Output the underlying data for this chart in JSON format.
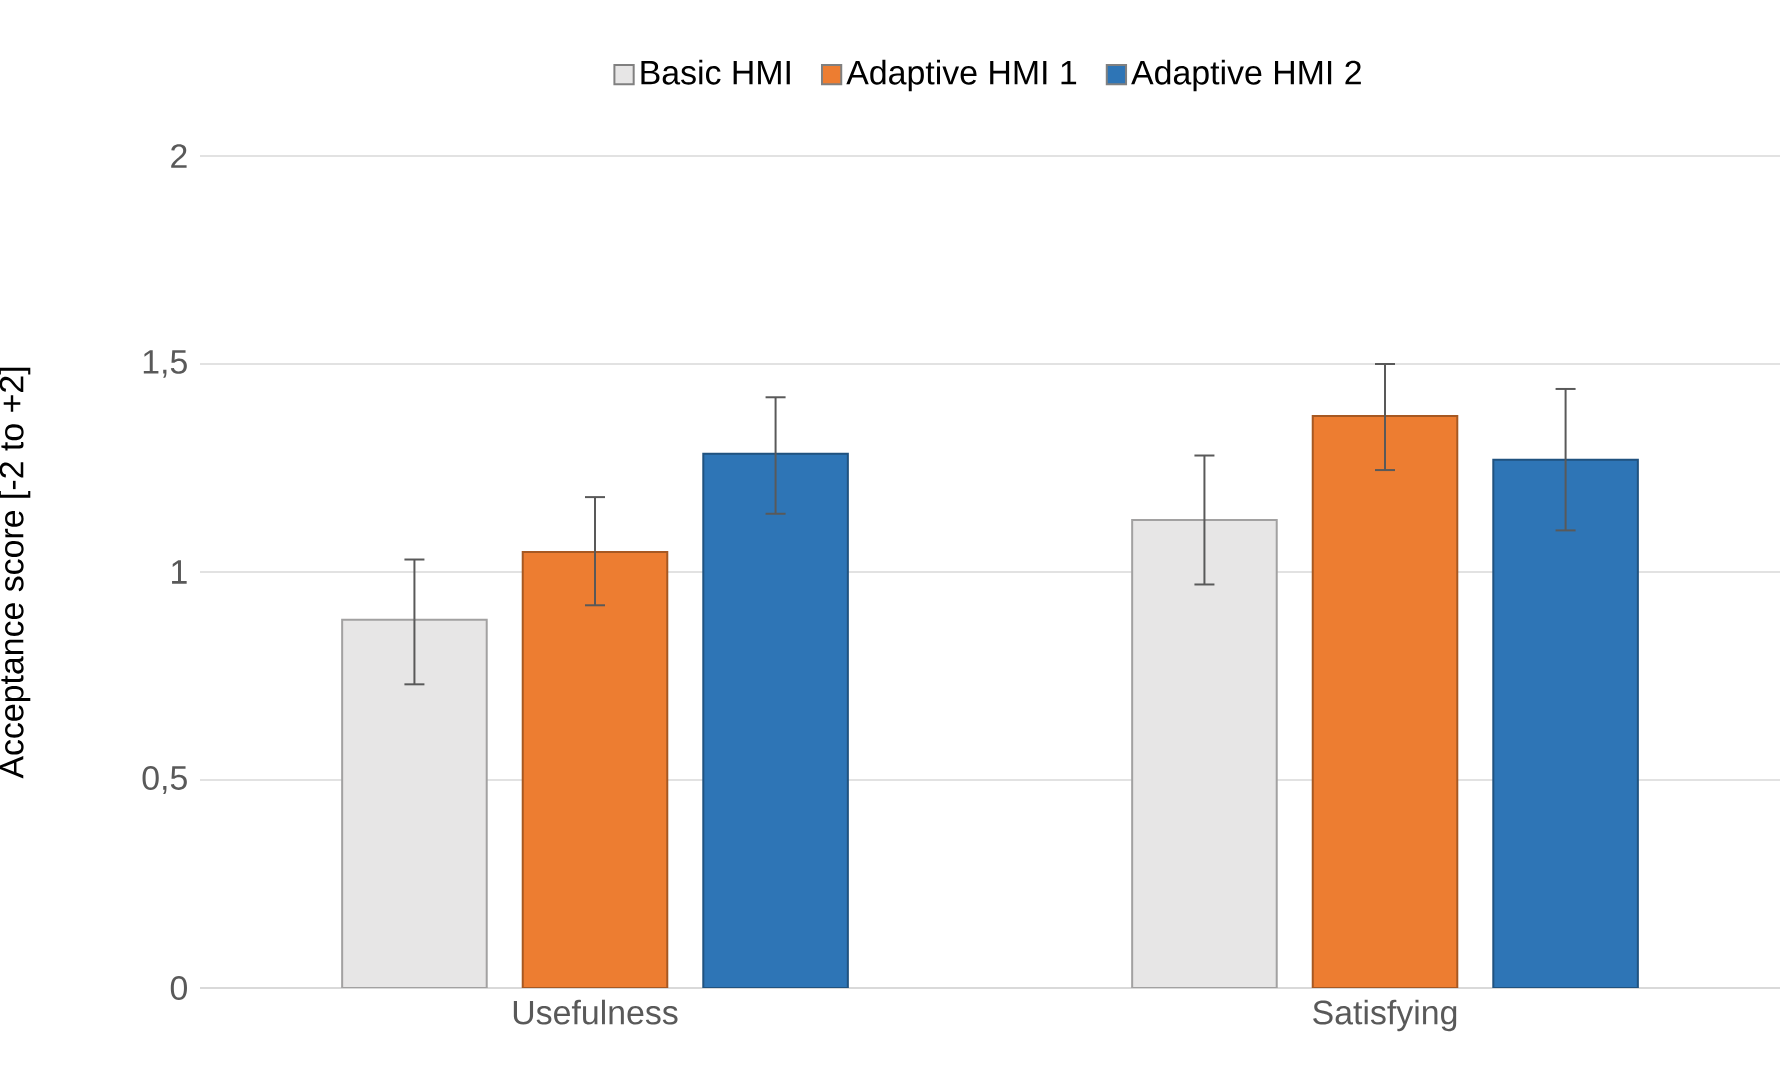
{
  "chart_data": {
    "type": "bar",
    "ylabel": "Acceptance score [-2 to +2]",
    "categories": [
      "Usefulness",
      "Satisfying"
    ],
    "series": [
      {
        "name": "Basic HMI",
        "color": "#e7e6e6",
        "values": [
          0.885,
          1.125
        ],
        "errors": [
          [
            0.73,
            1.03
          ],
          [
            0.97,
            1.28
          ]
        ]
      },
      {
        "name": "Adaptive HMI 1",
        "color": "#ed7d31",
        "values": [
          1.048,
          1.375
        ],
        "errors": [
          [
            0.92,
            1.18
          ],
          [
            1.245,
            1.5
          ]
        ]
      },
      {
        "name": "Adaptive HMI 2",
        "color": "#2e75b6",
        "values": [
          1.284,
          1.27
        ],
        "errors": [
          [
            1.14,
            1.42
          ],
          [
            1.1,
            1.44
          ]
        ]
      }
    ],
    "ylim": [
      0,
      2
    ],
    "yticks": [
      0,
      {
        "value": 0.5,
        "label": "0,5"
      },
      1,
      {
        "value": 1.5,
        "label": "1,5"
      },
      2
    ],
    "grid": "y",
    "legend": "top"
  }
}
